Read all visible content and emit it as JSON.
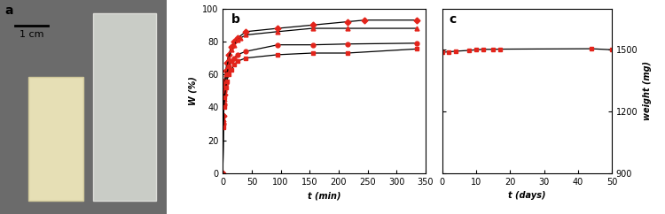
{
  "photo": {
    "label": "a",
    "scale_bar": "1 cm"
  },
  "chart_data": [
    {
      "type": "line",
      "title": "b",
      "x_label": "t (min)",
      "y_label": "W (%)",
      "xlim": [
        0,
        350
      ],
      "xticks": [
        0,
        50,
        100,
        150,
        200,
        250,
        300,
        350
      ],
      "ylim": [
        0,
        100
      ],
      "yticks": [
        0,
        20,
        40,
        60,
        80,
        100
      ],
      "series": [
        {
          "color": "#e3241b",
          "marker": "diamond",
          "line_style": "solid",
          "x": [
            0,
            1,
            2,
            3,
            5,
            7,
            10,
            15,
            20,
            25,
            40,
            95,
            155,
            215,
            245,
            335
          ],
          "values": [
            0,
            35,
            48,
            56,
            62,
            67,
            72,
            77,
            80,
            82,
            86,
            88,
            90,
            92,
            93,
            93
          ]
        },
        {
          "color": "#e3241b",
          "marker": "triangle",
          "line_style": "solid",
          "x": [
            0,
            1,
            2,
            3,
            5,
            7,
            10,
            15,
            20,
            25,
            30,
            40,
            95,
            155,
            215,
            335
          ],
          "values": [
            0,
            33,
            45,
            53,
            60,
            64,
            70,
            75,
            78,
            81,
            82,
            84,
            86,
            88,
            88,
            88
          ]
        },
        {
          "color": "#e3241b",
          "marker": "circle",
          "line_style": "solid",
          "x": [
            0,
            1,
            2,
            3,
            5,
            7,
            10,
            15,
            20,
            25,
            40,
            95,
            155,
            215,
            335
          ],
          "values": [
            0,
            30,
            42,
            50,
            55,
            60,
            65,
            68,
            70,
            72,
            74,
            78,
            78,
            78.5,
            79
          ]
        },
        {
          "color": "#e3241b",
          "marker": "square",
          "line_style": "solid",
          "x": [
            0,
            1,
            2,
            3,
            5,
            7,
            10,
            15,
            20,
            25,
            40,
            95,
            155,
            215,
            335
          ],
          "values": [
            0,
            28,
            40,
            46,
            52,
            56,
            60,
            63,
            66,
            68,
            70,
            72,
            73,
            73,
            75.5
          ]
        }
      ]
    },
    {
      "type": "line",
      "title": "c",
      "x_label": "t (days)",
      "y_label": "weight (mg)",
      "xlim": [
        0,
        50
      ],
      "xticks": [
        0,
        10,
        20,
        30,
        40,
        50
      ],
      "ylim": [
        900,
        1700
      ],
      "yticks": [
        900,
        1200,
        1500
      ],
      "series": [
        {
          "color": "#e3241b",
          "marker": "square",
          "line_style": "solid",
          "x": [
            0,
            2,
            4,
            8,
            10,
            12,
            15,
            17,
            44,
            50
          ],
          "values": [
            1488,
            1490,
            1493,
            1497,
            1500,
            1502,
            1502,
            1503,
            1505,
            1500
          ]
        }
      ]
    }
  ]
}
